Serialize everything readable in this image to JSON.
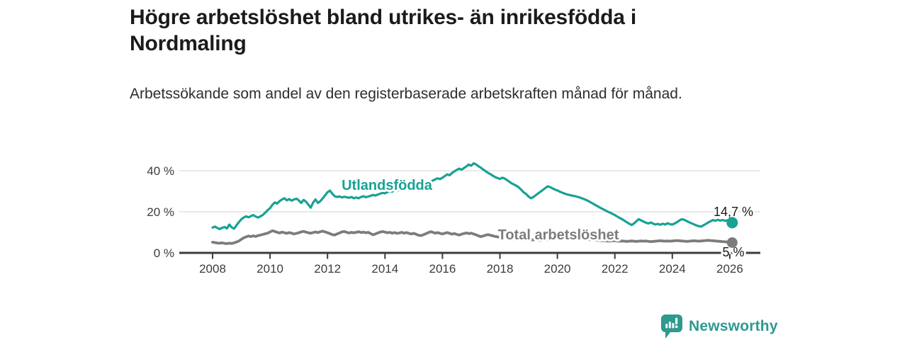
{
  "header": {
    "title": "Högre arbetslöshet bland utrikes- än inrikesfödda i Nordmaling",
    "subtitle": "Arbetssökande som andel av den registerbaserade arbetskraften månad för månad."
  },
  "footer": {
    "brand": "Newsworthy",
    "logo_icon": "newsworthy-pin-barchart-icon"
  },
  "colors": {
    "foreign_series": "#17a294",
    "total_series": "#7c7c7c",
    "grid": "#d9d9d9",
    "axis": "#3c3c3c",
    "text": "#1b1b1b",
    "brand": "#2c9a8f"
  },
  "chart_data": {
    "type": "line",
    "title": "Högre arbetslöshet bland utrikes- än inrikesfödda i Nordmaling",
    "x_unit": "year-month",
    "x_start_year": 2008.0,
    "x_step_years": 0.0833333,
    "xlim": [
      2006.84,
      2027.06
    ],
    "ylim": [
      0,
      45
    ],
    "grid": "horizontal-only",
    "legend_position": "inline-labels",
    "xticks": [
      "2008",
      "2010",
      "2012",
      "2014",
      "2016",
      "2018",
      "2020",
      "2022",
      "2024",
      "2026"
    ],
    "xtick_values": [
      2008,
      2010,
      2012,
      2014,
      2016,
      2018,
      2020,
      2022,
      2024,
      2026
    ],
    "yticks": [
      {
        "value": 0,
        "label": "0 %"
      },
      {
        "value": 20,
        "label": "20 %"
      },
      {
        "value": 40,
        "label": "40 %"
      }
    ],
    "series": [
      {
        "name": "Utlandsfödda",
        "color": "#17a294",
        "end_label": "14,7 %",
        "end_value": 14.7,
        "values": [
          12.3,
          12.8,
          12.1,
          11.6,
          12.2,
          12.6,
          11.9,
          13.8,
          12.4,
          11.8,
          13.5,
          15.0,
          16.3,
          17.2,
          17.8,
          17.3,
          17.9,
          18.4,
          17.7,
          17.2,
          17.8,
          18.5,
          19.6,
          20.8,
          21.8,
          23.4,
          24.6,
          24.0,
          25.2,
          26.0,
          26.6,
          25.6,
          26.2,
          25.4,
          26.0,
          26.4,
          25.6,
          24.3,
          25.8,
          24.9,
          23.5,
          22.0,
          24.5,
          26.0,
          24.3,
          25.2,
          26.5,
          28.0,
          29.5,
          30.3,
          28.8,
          27.6,
          27.2,
          27.5,
          27.0,
          27.3,
          27.1,
          26.8,
          27.2,
          26.6,
          27.0,
          26.6,
          27.2,
          27.6,
          27.1,
          27.4,
          27.8,
          28.2,
          27.9,
          28.4,
          28.8,
          29.2,
          29.0,
          29.6,
          30.2,
          29.8,
          30.4,
          30.1,
          30.6,
          31.2,
          30.8,
          31.4,
          31.9,
          31.6,
          32.2,
          32.8,
          33.5,
          34.1,
          33.6,
          34.3,
          33.9,
          34.6,
          35.2,
          35.8,
          36.3,
          35.9,
          36.6,
          37.4,
          38.2,
          37.8,
          38.9,
          39.7,
          40.4,
          41.0,
          40.5,
          41.3,
          42.1,
          43.0,
          42.4,
          43.6,
          43.1,
          42.2,
          41.5,
          40.6,
          39.8,
          39.0,
          38.3,
          37.6,
          36.9,
          36.4,
          36.0,
          36.6,
          36.2,
          35.4,
          34.6,
          33.8,
          33.2,
          32.6,
          31.8,
          30.6,
          29.4,
          28.6,
          27.4,
          26.6,
          27.2,
          28.1,
          29.0,
          29.8,
          30.7,
          31.6,
          32.4,
          32.0,
          31.4,
          30.8,
          30.4,
          29.8,
          29.3,
          28.9,
          28.5,
          28.2,
          27.9,
          27.7,
          27.4,
          27.1,
          26.7,
          26.2,
          25.8,
          25.2,
          24.5,
          23.9,
          23.2,
          22.6,
          21.9,
          21.3,
          20.7,
          20.1,
          19.6,
          19.0,
          18.4,
          17.7,
          17.0,
          16.4,
          15.7,
          14.9,
          14.2,
          13.6,
          14.3,
          15.4,
          16.4,
          15.8,
          15.2,
          14.7,
          14.3,
          14.8,
          14.2,
          13.8,
          14.1,
          13.7,
          14.2,
          13.8,
          14.4,
          14.0,
          13.8,
          14.3,
          15.0,
          15.8,
          16.4,
          16.1,
          15.5,
          14.9,
          14.4,
          13.9,
          13.4,
          13.0,
          12.8,
          13.4,
          14.1,
          14.8,
          15.4,
          16.0,
          15.6,
          16.1,
          15.7,
          16.0,
          15.6,
          15.9,
          15.4,
          14.7
        ]
      },
      {
        "name": "Total arbetslöshet",
        "color": "#7c7c7c",
        "end_label": "5 %",
        "end_value": 5.0,
        "values": [
          5.2,
          5.0,
          4.8,
          4.7,
          4.9,
          4.6,
          4.5,
          4.7,
          4.6,
          4.9,
          5.3,
          5.8,
          6.6,
          7.3,
          7.8,
          8.2,
          7.9,
          8.3,
          8.0,
          8.4,
          8.7,
          9.0,
          9.3,
          9.6,
          10.2,
          10.8,
          10.4,
          10.0,
          9.7,
          10.1,
          9.8,
          9.5,
          9.9,
          9.6,
          9.2,
          9.5,
          9.8,
          10.2,
          10.5,
          10.1,
          9.8,
          9.6,
          9.9,
          10.2,
          9.9,
          10.3,
          10.6,
          10.2,
          9.8,
          9.4,
          8.9,
          8.7,
          9.2,
          9.7,
          10.2,
          10.4,
          10.0,
          9.7,
          10.0,
          9.8,
          10.0,
          10.3,
          9.9,
          10.1,
          9.8,
          10.0,
          9.4,
          8.8,
          9.2,
          9.7,
          10.1,
          10.4,
          10.1,
          9.8,
          10.0,
          9.6,
          9.9,
          9.5,
          9.7,
          10.0,
          9.6,
          9.9,
          9.5,
          9.2,
          9.5,
          9.1,
          8.6,
          8.4,
          8.8,
          9.3,
          9.8,
          10.3,
          10.0,
          9.6,
          9.9,
          9.5,
          9.2,
          9.6,
          9.9,
          9.5,
          9.1,
          9.4,
          9.0,
          8.7,
          9.1,
          9.4,
          9.7,
          9.4,
          9.6,
          9.2,
          8.8,
          8.3,
          7.9,
          8.2,
          8.6,
          8.9,
          8.6,
          8.3,
          8.0,
          7.8,
          7.6,
          7.4,
          7.2,
          7.0,
          6.9,
          6.8,
          6.7,
          6.6,
          6.5,
          6.4,
          6.3,
          6.2,
          6.2,
          6.3,
          6.4,
          6.3,
          6.2,
          6.1,
          6.2,
          6.3,
          6.4,
          6.5,
          6.6,
          6.7,
          6.9,
          7.1,
          7.4,
          7.6,
          7.5,
          7.4,
          7.2,
          7.1,
          7.0,
          6.9,
          6.8,
          6.7,
          6.6,
          6.5,
          6.4,
          6.3,
          6.2,
          6.1,
          6.0,
          5.9,
          5.9,
          5.8,
          5.8,
          5.9,
          5.9,
          5.8,
          5.7,
          5.8,
          5.7,
          5.6,
          5.7,
          5.8,
          5.7,
          5.6,
          5.7,
          5.8,
          5.7,
          5.8,
          5.6,
          5.5,
          5.6,
          5.7,
          5.8,
          5.9,
          5.8,
          5.7,
          5.8,
          5.7,
          5.8,
          5.9,
          6.0,
          5.9,
          5.8,
          5.7,
          5.6,
          5.7,
          5.8,
          5.9,
          5.8,
          5.7,
          5.8,
          5.9,
          6.0,
          6.1,
          6.0,
          5.9,
          5.8,
          5.7,
          5.6,
          5.5,
          5.4,
          5.3,
          5.2,
          5.0
        ]
      }
    ]
  }
}
